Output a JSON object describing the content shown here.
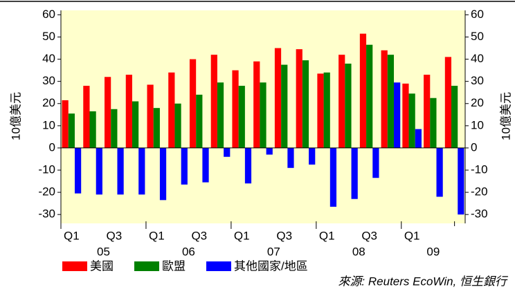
{
  "chart_data": {
    "type": "bar",
    "ylabel": "10億美元",
    "y2label": "10億美元",
    "categories": [
      "Q1",
      null,
      "Q3",
      null,
      "Q1",
      null,
      "Q3",
      null,
      "Q1",
      null,
      "Q3",
      null,
      "Q1",
      null,
      "Q3",
      null,
      "Q1",
      null,
      null
    ],
    "years": [
      "05",
      "06",
      "07",
      "08",
      "09"
    ],
    "series": [
      {
        "name": "美國",
        "color": "#ff0000",
        "values": [
          21.5,
          28,
          32,
          33,
          28.5,
          34,
          40,
          42,
          35,
          39,
          45,
          44.5,
          33.5,
          42,
          51.5,
          44,
          29,
          33,
          41
        ]
      },
      {
        "name": "歐盟",
        "color": "#008000",
        "values": [
          15.5,
          16.5,
          17.5,
          21,
          18,
          20,
          24,
          29.5,
          28,
          29.5,
          37.5,
          39.5,
          34,
          38,
          46.5,
          42,
          24.5,
          22.5,
          28
        ]
      },
      {
        "name": "其他國家/地區",
        "color": "#0000ff",
        "values": [
          -20.5,
          -21,
          -21,
          -21,
          -23.5,
          -16.5,
          -15.5,
          -4,
          -16,
          -3,
          -9,
          -7.5,
          -26.5,
          -23,
          -13.5,
          29.5,
          8.5,
          -22,
          -30
        ]
      }
    ],
    "ylim": [
      -34,
      62
    ],
    "yticks": [
      -30,
      -20,
      -10,
      0,
      10,
      20,
      30,
      40,
      50,
      60
    ],
    "y2lim": [
      -34,
      62
    ],
    "y2ticks": [
      -30,
      -20,
      -10,
      0,
      10,
      20,
      30,
      40,
      50,
      60
    ],
    "legend": "bottom-left",
    "source": "來源: Reuters EcoWin, 恒生銀行"
  }
}
